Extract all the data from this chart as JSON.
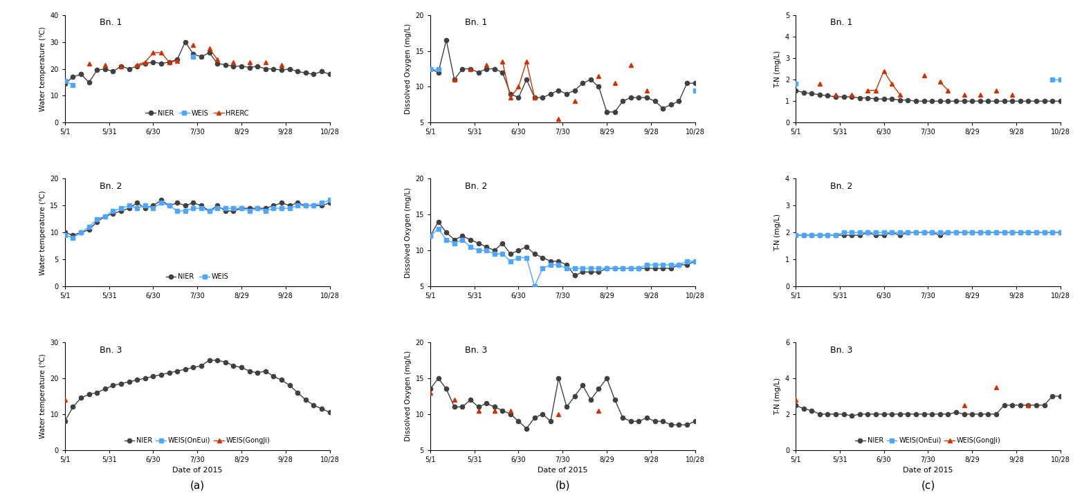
{
  "x_labels": [
    "5/1",
    "5/31",
    "6/30",
    "7/30",
    "8/29",
    "9/28",
    "10/28"
  ],
  "x_tick_pos": [
    0,
    30,
    60,
    90,
    120,
    150,
    180
  ],
  "wt_bn1": {
    "title": "Bn. 1",
    "ylim": [
      0.0,
      40.0
    ],
    "yticks": [
      0.0,
      10.0,
      20.0,
      30.0,
      40.0
    ],
    "ylabel": "Water temperature (℃)",
    "NIER": [
      14.5,
      17.0,
      18.0,
      15.0,
      19.5,
      20.0,
      19.0,
      21.0,
      20.0,
      21.0,
      22.0,
      22.5,
      22.0,
      22.5,
      23.5,
      30.0,
      25.5,
      24.5,
      26.0,
      22.0,
      21.5,
      21.0,
      21.0,
      20.5,
      21.0,
      20.0,
      20.0,
      19.5,
      20.0,
      19.0,
      18.5,
      18.0,
      19.0,
      18.0
    ],
    "WEIS": [
      15.5,
      14.0,
      null,
      null,
      null,
      null,
      null,
      null,
      null,
      null,
      null,
      null,
      null,
      null,
      null,
      null,
      24.5,
      null,
      null,
      null,
      null,
      null,
      null,
      null,
      null,
      null,
      null,
      null,
      null,
      null,
      null,
      null,
      null,
      null
    ],
    "HRERC": [
      null,
      null,
      null,
      22.0,
      null,
      21.5,
      null,
      21.0,
      null,
      21.5,
      22.5,
      26.0,
      26.0,
      22.5,
      23.0,
      null,
      29.0,
      null,
      27.5,
      23.5,
      null,
      22.5,
      null,
      22.5,
      null,
      22.5,
      null,
      21.5,
      null,
      null,
      null,
      null,
      null,
      null
    ],
    "legend": [
      [
        "NIER",
        "WEIS",
        "HRERC"
      ]
    ]
  },
  "wt_bn2": {
    "title": "Bn. 2",
    "ylim": [
      0.0,
      20.0
    ],
    "yticks": [
      0.0,
      5.0,
      10.0,
      15.0,
      20.0
    ],
    "ylabel": "Water temperature (℃)",
    "NIER": [
      10.0,
      9.5,
      10.0,
      10.5,
      12.0,
      13.0,
      13.5,
      14.0,
      14.5,
      15.5,
      14.5,
      15.0,
      16.0,
      15.0,
      15.5,
      15.0,
      15.5,
      15.0,
      14.0,
      15.0,
      14.0,
      14.0,
      14.5,
      14.5,
      14.5,
      14.5,
      15.0,
      15.5,
      15.0,
      15.5,
      15.0,
      15.0,
      15.0,
      15.5
    ],
    "WEIS": [
      9.5,
      9.0,
      10.0,
      11.0,
      12.5,
      13.0,
      14.0,
      14.5,
      15.0,
      14.5,
      15.0,
      14.5,
      15.5,
      15.0,
      14.0,
      14.0,
      14.5,
      14.5,
      14.0,
      14.5,
      14.5,
      14.5,
      14.5,
      14.0,
      14.5,
      14.0,
      14.5,
      14.5,
      14.5,
      15.0,
      15.0,
      15.0,
      15.5,
      16.0
    ],
    "legend": [
      [
        "NIER",
        "WEIS"
      ]
    ]
  },
  "wt_bn3": {
    "title": "Bn. 3",
    "ylim": [
      0.0,
      30.0
    ],
    "yticks": [
      0.0,
      10.0,
      20.0,
      30.0
    ],
    "ylabel": "Water temperature (℃)",
    "xlabel": "Date of 2015",
    "NIER": [
      8.0,
      12.0,
      14.5,
      15.5,
      16.0,
      17.0,
      18.0,
      18.5,
      19.0,
      19.5,
      20.0,
      20.5,
      21.0,
      21.5,
      22.0,
      22.5,
      23.0,
      23.5,
      25.0,
      25.0,
      24.5,
      23.5,
      23.0,
      22.0,
      21.5,
      22.0,
      20.5,
      19.5,
      18.0,
      16.0,
      14.0,
      12.5,
      11.5,
      10.5
    ],
    "WEIS_OnEui": [
      null,
      null,
      null,
      null,
      null,
      null,
      null,
      null,
      null,
      null,
      null,
      null,
      null,
      null,
      null,
      null,
      null,
      null,
      null,
      null,
      null,
      null,
      null,
      null,
      null,
      null,
      null,
      null,
      null,
      null,
      null,
      null,
      null,
      null
    ],
    "WEIS_GongJi": [
      14.0,
      null,
      null,
      null,
      null,
      null,
      null,
      null,
      null,
      null,
      null,
      null,
      null,
      null,
      null,
      null,
      null,
      null,
      null,
      null,
      null,
      null,
      null,
      null,
      null,
      null,
      null,
      null,
      null,
      null,
      null,
      null,
      null,
      null
    ],
    "legend": [
      [
        "NIER",
        "WEIS(OnEui)",
        "WEIS(GongJi)"
      ]
    ]
  },
  "do_bn1": {
    "title": "Bn. 1",
    "ylim": [
      5.0,
      20.0
    ],
    "yticks": [
      5.0,
      10.0,
      15.0,
      20.0
    ],
    "ylabel": "Dissolved Oxygen (mg/L)",
    "NIER": [
      12.5,
      12.0,
      16.5,
      11.0,
      12.5,
      12.5,
      12.0,
      12.5,
      12.5,
      12.0,
      9.0,
      8.5,
      11.0,
      8.5,
      8.5,
      9.0,
      9.5,
      9.0,
      9.5,
      10.5,
      11.0,
      10.0,
      6.5,
      6.5,
      8.0,
      8.5,
      8.5,
      8.5,
      8.0,
      7.0,
      7.5,
      8.0,
      10.5,
      10.5
    ],
    "WEIS": [
      12.5,
      12.5,
      null,
      null,
      null,
      null,
      null,
      null,
      null,
      null,
      null,
      null,
      null,
      null,
      null,
      null,
      null,
      null,
      null,
      null,
      null,
      null,
      null,
      null,
      null,
      null,
      null,
      null,
      null,
      null,
      null,
      null,
      null,
      9.5
    ],
    "HRERC": [
      null,
      null,
      null,
      11.0,
      null,
      12.5,
      null,
      13.0,
      null,
      13.5,
      8.5,
      10.0,
      13.5,
      8.5,
      null,
      null,
      5.5,
      null,
      8.0,
      null,
      null,
      11.5,
      null,
      10.5,
      null,
      13.0,
      null,
      9.5,
      null,
      null,
      null,
      null,
      null,
      null
    ]
  },
  "do_bn2": {
    "title": "Bn. 2",
    "ylim": [
      5.0,
      20.0
    ],
    "yticks": [
      5.0,
      10.0,
      15.0,
      20.0
    ],
    "ylabel": "Dissolved Oxygen (mg/L)",
    "NIER": [
      12.0,
      14.0,
      12.5,
      11.5,
      12.0,
      11.5,
      11.0,
      10.5,
      10.0,
      11.0,
      9.5,
      10.0,
      10.5,
      9.5,
      9.0,
      8.5,
      8.5,
      8.0,
      6.5,
      7.0,
      7.0,
      7.0,
      7.5,
      7.5,
      7.5,
      7.5,
      7.5,
      7.5,
      7.5,
      7.5,
      7.5,
      8.0,
      8.0,
      8.5
    ],
    "WEIS": [
      12.0,
      13.0,
      11.5,
      11.0,
      11.5,
      10.5,
      10.0,
      10.0,
      9.5,
      9.5,
      8.5,
      9.0,
      9.0,
      5.0,
      7.5,
      8.0,
      8.0,
      7.5,
      7.5,
      7.5,
      7.5,
      7.5,
      7.5,
      7.5,
      7.5,
      7.5,
      7.5,
      8.0,
      8.0,
      8.0,
      8.0,
      8.0,
      8.5,
      8.5
    ]
  },
  "do_bn3": {
    "title": "Bn. 3",
    "ylim": [
      5.0,
      20.0
    ],
    "yticks": [
      5.0,
      10.0,
      15.0,
      20.0
    ],
    "ylabel": "Dissolved Oxygen (mg/L)",
    "xlabel": "Date of 2015",
    "NIER": [
      13.5,
      15.0,
      13.5,
      11.0,
      11.0,
      12.0,
      11.0,
      11.5,
      11.0,
      10.5,
      10.0,
      9.0,
      8.0,
      9.5,
      10.0,
      9.0,
      15.0,
      11.0,
      12.5,
      14.0,
      12.0,
      13.5,
      15.0,
      12.0,
      9.5,
      9.0,
      9.0,
      9.5,
      9.0,
      9.0,
      8.5,
      8.5,
      8.5,
      9.0
    ],
    "WEIS_OnEui": [
      null,
      null,
      null,
      null,
      null,
      null,
      null,
      null,
      null,
      null,
      null,
      null,
      null,
      null,
      null,
      null,
      null,
      null,
      null,
      null,
      null,
      null,
      null,
      null,
      null,
      null,
      null,
      null,
      null,
      null,
      null,
      null,
      null,
      null
    ],
    "WEIS_GongJi": [
      13.0,
      null,
      null,
      12.0,
      null,
      null,
      10.5,
      null,
      10.5,
      null,
      10.5,
      null,
      null,
      null,
      null,
      null,
      10.0,
      null,
      null,
      null,
      null,
      10.5,
      null,
      null,
      null,
      null,
      null,
      null,
      null,
      null,
      null,
      null,
      null,
      null
    ]
  },
  "tn_bn1": {
    "title": "Bn. 1",
    "ylim": [
      0.0,
      5.0
    ],
    "yticks": [
      0.0,
      1.0,
      2.0,
      3.0,
      4.0,
      5.0
    ],
    "ylabel": "T-N (mg/L)",
    "NIER": [
      1.5,
      1.4,
      1.35,
      1.3,
      1.25,
      1.2,
      1.2,
      1.2,
      1.15,
      1.15,
      1.1,
      1.1,
      1.1,
      1.05,
      1.05,
      1.0,
      1.0,
      1.0,
      1.0,
      1.0,
      1.0,
      1.0,
      1.0,
      1.0,
      1.0,
      1.0,
      1.0,
      1.0,
      1.0,
      1.0,
      1.0,
      1.0,
      1.0,
      1.0
    ],
    "WEIS": [
      1.8,
      null,
      null,
      null,
      null,
      null,
      null,
      null,
      null,
      null,
      null,
      null,
      null,
      null,
      null,
      null,
      null,
      null,
      null,
      null,
      null,
      null,
      null,
      null,
      null,
      null,
      null,
      null,
      null,
      null,
      null,
      null,
      2.0,
      2.0
    ],
    "HRERC": [
      null,
      null,
      null,
      1.8,
      null,
      1.3,
      null,
      1.3,
      null,
      1.5,
      1.5,
      2.4,
      1.8,
      1.3,
      null,
      null,
      2.2,
      null,
      1.9,
      1.5,
      null,
      1.3,
      null,
      1.3,
      null,
      1.5,
      null,
      1.3,
      null,
      null,
      null,
      null,
      null,
      null
    ]
  },
  "tn_bn2": {
    "title": "Bn. 2",
    "ylim": [
      0.0,
      4.0
    ],
    "yticks": [
      0.0,
      1.0,
      2.0,
      3.0,
      4.0
    ],
    "ylabel": "T-N (mg/L)",
    "NIER": [
      1.9,
      1.9,
      1.9,
      1.9,
      1.9,
      1.9,
      1.9,
      1.9,
      1.9,
      2.0,
      1.9,
      1.9,
      2.0,
      1.9,
      2.0,
      2.0,
      2.0,
      2.0,
      1.9,
      2.0,
      2.0,
      2.0,
      2.0,
      2.0,
      2.0,
      2.0,
      2.0,
      2.0,
      2.0,
      2.0,
      2.0,
      2.0,
      2.0,
      2.0
    ],
    "WEIS": [
      1.9,
      1.9,
      1.9,
      1.9,
      1.9,
      1.9,
      2.0,
      2.0,
      2.0,
      2.0,
      2.0,
      2.0,
      2.0,
      2.0,
      2.0,
      2.0,
      2.0,
      2.0,
      2.0,
      2.0,
      2.0,
      2.0,
      2.0,
      2.0,
      2.0,
      2.0,
      2.0,
      2.0,
      2.0,
      2.0,
      2.0,
      2.0,
      2.0,
      2.0
    ]
  },
  "tn_bn3": {
    "title": "Bn. 3",
    "ylim": [
      0.0,
      6.0
    ],
    "yticks": [
      0.0,
      2.0,
      4.0,
      6.0
    ],
    "ylabel": "T-N (mg/L)",
    "xlabel": "Date of 2015",
    "NIER": [
      2.5,
      2.3,
      2.2,
      2.0,
      2.0,
      2.0,
      2.0,
      1.9,
      2.0,
      2.0,
      2.0,
      2.0,
      2.0,
      2.0,
      2.0,
      2.0,
      2.0,
      2.0,
      2.0,
      2.0,
      2.1,
      2.0,
      2.0,
      2.0,
      2.0,
      2.0,
      2.5,
      2.5,
      2.5,
      2.5,
      2.5,
      2.5,
      3.0,
      3.0
    ],
    "WEIS_OnEui": [
      null,
      null,
      null,
      null,
      null,
      null,
      null,
      null,
      null,
      null,
      null,
      null,
      null,
      null,
      null,
      null,
      null,
      null,
      null,
      null,
      null,
      null,
      null,
      null,
      null,
      null,
      null,
      null,
      null,
      null,
      null,
      null,
      null,
      null
    ],
    "WEIS_GongJi": [
      2.8,
      null,
      null,
      null,
      null,
      null,
      null,
      null,
      null,
      null,
      null,
      null,
      null,
      null,
      null,
      null,
      null,
      null,
      null,
      null,
      null,
      2.5,
      null,
      null,
      null,
      3.5,
      null,
      null,
      null,
      2.5,
      null,
      null,
      null,
      null
    ]
  },
  "colors": {
    "NIER": "#404040",
    "WEIS": "#4da6ff",
    "HRERC": "#cc3300",
    "WEIS_OnEui": "#4da6ff",
    "WEIS_GongJi": "#cc3300"
  },
  "markers": {
    "NIER": "o",
    "WEIS": "s",
    "HRERC": "^",
    "WEIS_OnEui": "s",
    "WEIS_GongJi": "^"
  },
  "subplot_labels": [
    "(a)",
    "(b)",
    "(c)"
  ]
}
